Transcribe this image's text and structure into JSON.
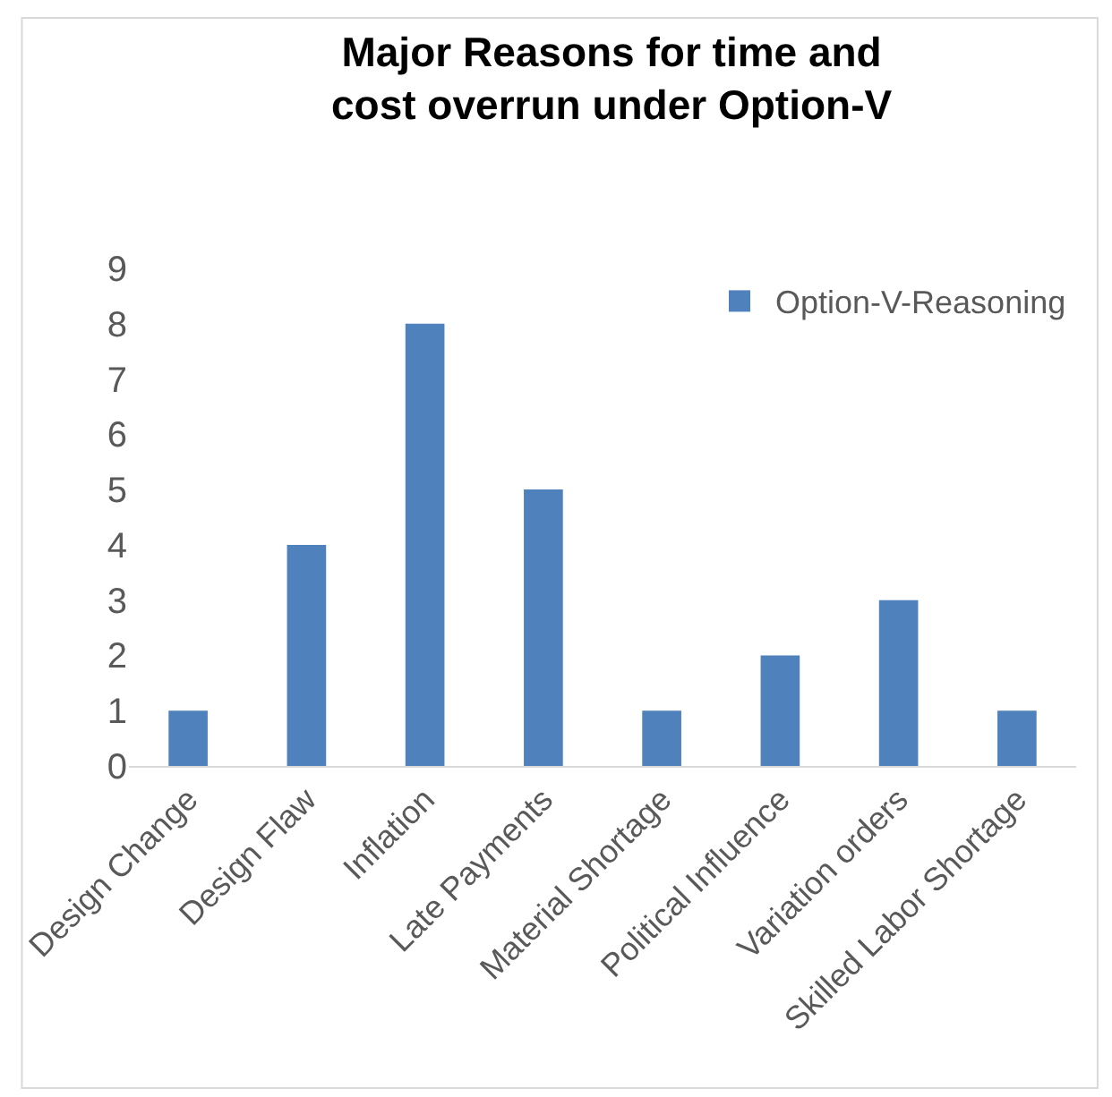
{
  "chart_data": {
    "type": "bar",
    "title": "Major Reasons for time and cost overrun under Option-V",
    "categories": [
      "Design Change",
      "Design Flaw",
      "Inflation",
      "Late Payments",
      "Material Shortage",
      "Political Influence",
      "Variation orders",
      "Skilled Labor Shortage"
    ],
    "series": [
      {
        "name": "Option-V-Reasoning",
        "color": "#4f81bd",
        "values": [
          1,
          4,
          8,
          5,
          1,
          2,
          3,
          1
        ]
      }
    ],
    "ylim": [
      0,
      9
    ],
    "yticks": [
      0,
      1,
      2,
      3,
      4,
      5,
      6,
      7,
      8,
      9
    ],
    "grid": false,
    "legend": "top right"
  }
}
